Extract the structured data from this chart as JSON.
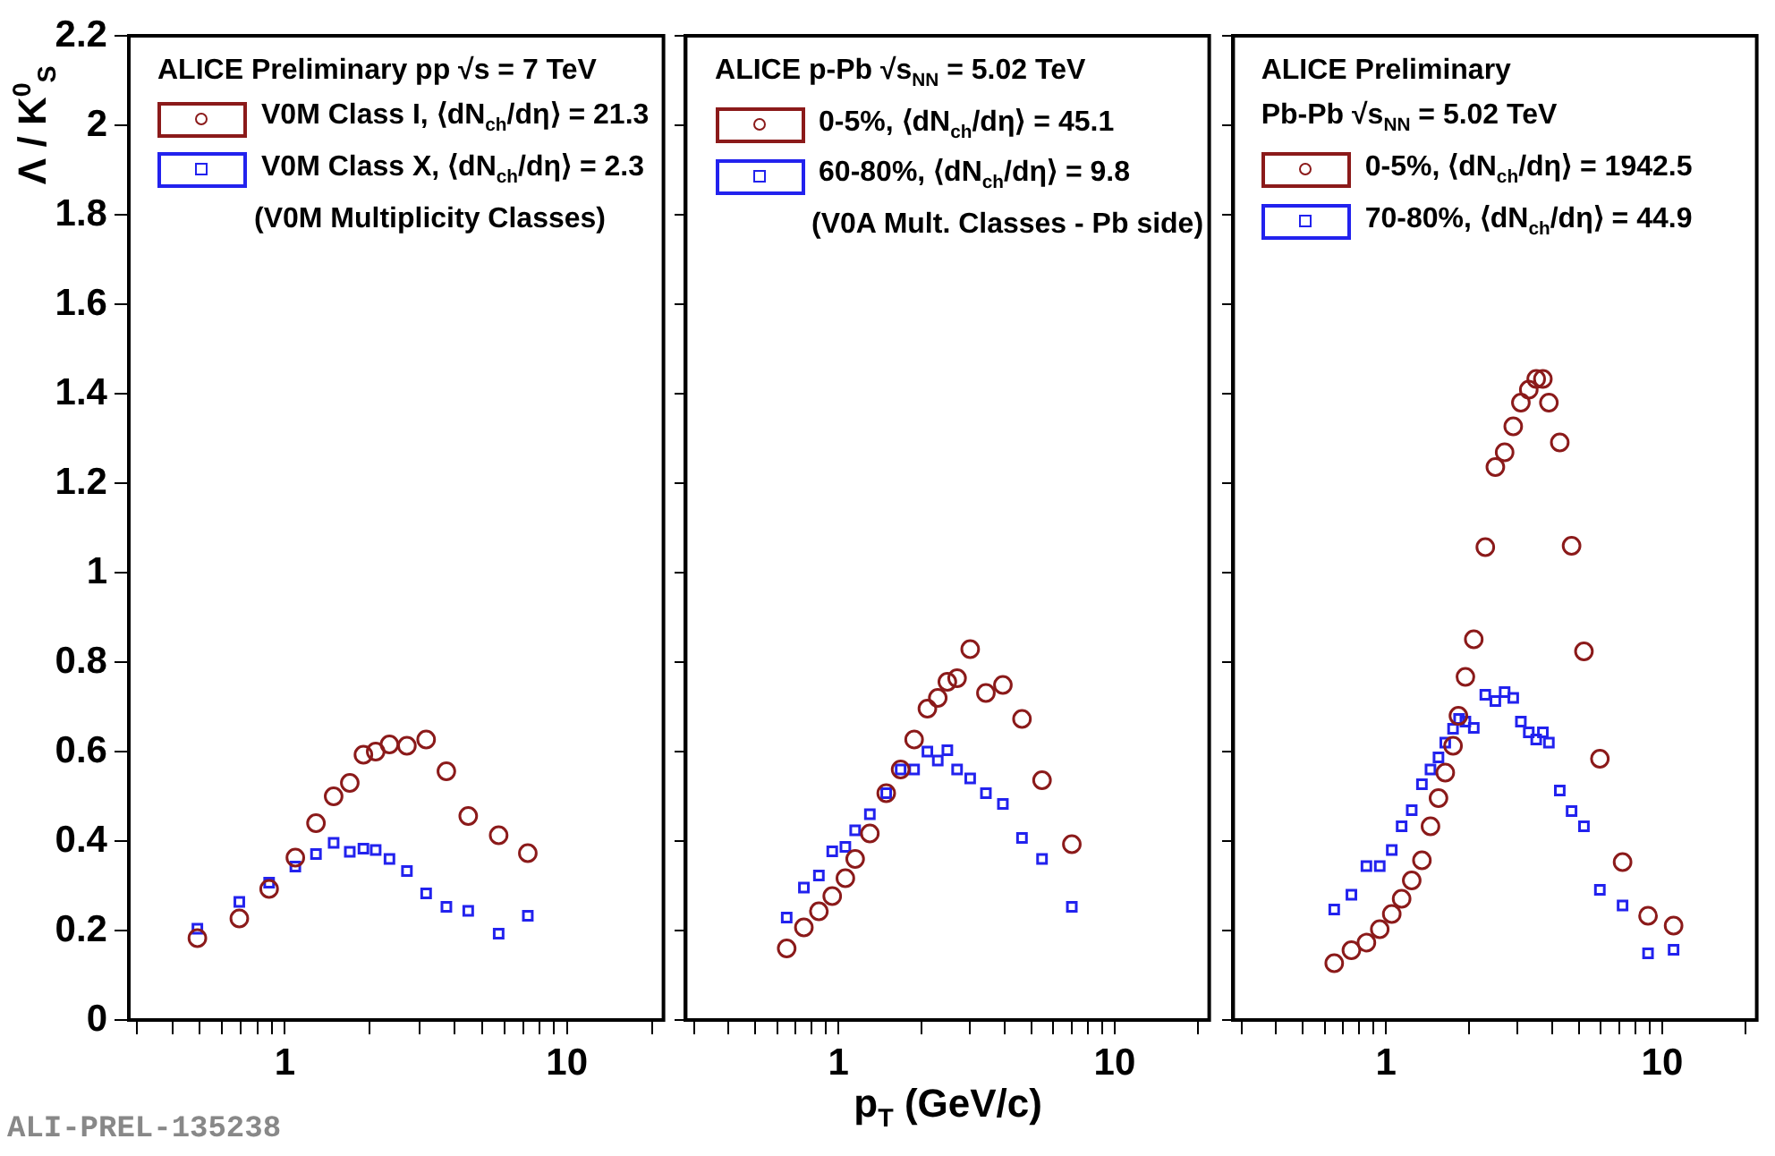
{
  "chart_data": [
    {
      "type": "scatter",
      "title": "ALICE Preliminary pp √s = 7 TeV",
      "ylabel": "Λ / K$^{0}$$_{S}$",
      "log": "x",
      "grid": false,
      "legend": "top left",
      "xlim": [
        0.28,
        22
      ],
      "xticks": [
        {
          "value": 0.3,
          "label": null
        },
        {
          "value": 0.4,
          "label": null
        },
        {
          "value": 0.5,
          "label": null
        },
        {
          "value": 0.6,
          "label": null
        },
        {
          "value": 0.7,
          "label": null
        },
        {
          "value": 0.8,
          "label": null
        },
        {
          "value": 0.9,
          "label": null
        },
        {
          "value": 1,
          "label": "1"
        },
        {
          "value": 2,
          "label": null
        },
        {
          "value": 3,
          "label": null
        },
        {
          "value": 4,
          "label": null
        },
        {
          "value": 5,
          "label": null
        },
        {
          "value": 6,
          "label": null
        },
        {
          "value": 7,
          "label": null
        },
        {
          "value": 8,
          "label": null
        },
        {
          "value": 9,
          "label": null
        },
        {
          "value": 10,
          "label": "10"
        },
        {
          "value": 20,
          "label": null
        }
      ],
      "ylim": [
        0,
        2.2
      ],
      "yticks": [
        0,
        0.2,
        0.4,
        0.6,
        0.8,
        1,
        1.2,
        1.4,
        1.6,
        1.8,
        2,
        2.2
      ],
      "annotations": [
        "(V0M Multiplicity Classes)",
        "ALI-PREL-135238"
      ],
      "series": [
        {
          "name": "V0M Class I, ⟨dN$_{ch}$/dη⟩ = 21.3",
          "color": "#8b1a1a",
          "marker": "circle",
          "x": [
            0.49,
            0.69,
            0.88,
            1.09,
            1.29,
            1.49,
            1.7,
            1.9,
            2.1,
            2.35,
            2.71,
            3.17,
            3.74,
            4.47,
            5.73,
            7.27
          ],
          "values": [
            0.183,
            0.227,
            0.293,
            0.363,
            0.44,
            0.5,
            0.53,
            0.593,
            0.6,
            0.616,
            0.613,
            0.627,
            0.556,
            0.456,
            0.413,
            0.373
          ]
        },
        {
          "name": "V0M Class X, ⟨dN$_{ch}$/dη⟩ = 2.3",
          "color": "#2222ee",
          "marker": "square",
          "x": [
            0.49,
            0.69,
            0.88,
            1.09,
            1.29,
            1.49,
            1.7,
            1.9,
            2.1,
            2.35,
            2.71,
            3.17,
            3.74,
            4.47,
            5.73,
            7.27
          ],
          "values": [
            0.204,
            0.264,
            0.307,
            0.343,
            0.371,
            0.396,
            0.376,
            0.383,
            0.38,
            0.36,
            0.333,
            0.283,
            0.253,
            0.244,
            0.193,
            0.233
          ]
        }
      ]
    },
    {
      "type": "scatter",
      "title": "ALICE p-Pb √s$_{NN}$ = 5.02 TeV",
      "xlabel": "p$_{T}$ (GeV/c)",
      "log": "x",
      "grid": false,
      "legend": "top left",
      "tick_labels": "x",
      "xlim": [
        0.28,
        22
      ],
      "xticks": [
        {
          "value": 0.3,
          "label": null
        },
        {
          "value": 0.4,
          "label": null
        },
        {
          "value": 0.5,
          "label": null
        },
        {
          "value": 0.6,
          "label": null
        },
        {
          "value": 0.7,
          "label": null
        },
        {
          "value": 0.8,
          "label": null
        },
        {
          "value": 0.9,
          "label": null
        },
        {
          "value": 1,
          "label": "1"
        },
        {
          "value": 2,
          "label": null
        },
        {
          "value": 3,
          "label": null
        },
        {
          "value": 4,
          "label": null
        },
        {
          "value": 5,
          "label": null
        },
        {
          "value": 6,
          "label": null
        },
        {
          "value": 7,
          "label": null
        },
        {
          "value": 8,
          "label": null
        },
        {
          "value": 9,
          "label": null
        },
        {
          "value": 10,
          "label": "10"
        },
        {
          "value": 20,
          "label": null
        }
      ],
      "ylim": [
        0,
        2.2
      ],
      "yticks": [
        0,
        0.2,
        0.4,
        0.6,
        0.8,
        1,
        1.2,
        1.4,
        1.6,
        1.8,
        2,
        2.2
      ],
      "annotations": [
        "(V0A Mult. Classes - Pb side)"
      ],
      "series": [
        {
          "name": "0-5%, ⟨dN$_{ch}$/dη⟩ = 45.1",
          "color": "#8b1a1a",
          "marker": "circle",
          "x": [
            0.65,
            0.75,
            0.85,
            0.95,
            1.06,
            1.15,
            1.3,
            1.49,
            1.68,
            1.88,
            2.1,
            2.29,
            2.48,
            2.69,
            3.0,
            3.42,
            3.94,
            4.62,
            5.46,
            7.0
          ],
          "values": [
            0.16,
            0.207,
            0.243,
            0.277,
            0.317,
            0.36,
            0.417,
            0.507,
            0.56,
            0.627,
            0.696,
            0.72,
            0.756,
            0.764,
            0.829,
            0.731,
            0.749,
            0.673,
            0.536,
            0.393
          ]
        },
        {
          "name": "60-80%, ⟨dN$_{ch}$/dη⟩ = 9.8",
          "color": "#2222ee",
          "marker": "square",
          "x": [
            0.65,
            0.75,
            0.85,
            0.95,
            1.06,
            1.15,
            1.3,
            1.49,
            1.68,
            1.88,
            2.1,
            2.29,
            2.48,
            2.69,
            3.0,
            3.42,
            3.94,
            4.62,
            5.46,
            7.0
          ],
          "values": [
            0.229,
            0.296,
            0.323,
            0.377,
            0.387,
            0.424,
            0.46,
            0.507,
            0.56,
            0.56,
            0.6,
            0.58,
            0.603,
            0.56,
            0.54,
            0.507,
            0.483,
            0.407,
            0.36,
            0.253
          ]
        }
      ]
    },
    {
      "type": "scatter",
      "title": "ALICE Preliminary",
      "subtitle": "Pb-Pb √s$_{NN}$ = 5.02 TeV",
      "log": "x",
      "grid": false,
      "legend": "top left",
      "tick_labels": "x",
      "xlim": [
        0.28,
        22
      ],
      "xticks": [
        {
          "value": 0.3,
          "label": null
        },
        {
          "value": 0.4,
          "label": null
        },
        {
          "value": 0.5,
          "label": null
        },
        {
          "value": 0.6,
          "label": null
        },
        {
          "value": 0.7,
          "label": null
        },
        {
          "value": 0.8,
          "label": null
        },
        {
          "value": 0.9,
          "label": null
        },
        {
          "value": 1,
          "label": "1"
        },
        {
          "value": 2,
          "label": null
        },
        {
          "value": 3,
          "label": null
        },
        {
          "value": 4,
          "label": null
        },
        {
          "value": 5,
          "label": null
        },
        {
          "value": 6,
          "label": null
        },
        {
          "value": 7,
          "label": null
        },
        {
          "value": 8,
          "label": null
        },
        {
          "value": 9,
          "label": null
        },
        {
          "value": 10,
          "label": "10"
        },
        {
          "value": 20,
          "label": null
        }
      ],
      "ylim": [
        0,
        2.2
      ],
      "yticks": [
        0,
        0.2,
        0.4,
        0.6,
        0.8,
        1,
        1.2,
        1.4,
        1.6,
        1.8,
        2,
        2.2
      ],
      "series": [
        {
          "name": "0-5%, ⟨dN$_{ch}$/dη⟩ = 1942.5",
          "color": "#8b1a1a",
          "marker": "circle",
          "x": [
            0.65,
            0.75,
            0.85,
            0.95,
            1.05,
            1.14,
            1.24,
            1.35,
            1.45,
            1.55,
            1.64,
            1.75,
            1.83,
            1.94,
            2.08,
            2.29,
            2.49,
            2.69,
            2.89,
            3.08,
            3.29,
            3.5,
            3.7,
            3.89,
            4.26,
            4.7,
            5.21,
            5.95,
            7.19,
            8.89,
            11.0
          ],
          "values": [
            0.127,
            0.156,
            0.173,
            0.203,
            0.237,
            0.271,
            0.312,
            0.357,
            0.433,
            0.496,
            0.553,
            0.613,
            0.68,
            0.767,
            0.851,
            1.057,
            1.236,
            1.269,
            1.327,
            1.38,
            1.409,
            1.433,
            1.433,
            1.38,
            1.291,
            1.06,
            0.824,
            0.584,
            0.353,
            0.233,
            0.211
          ]
        },
        {
          "name": "70-80%, ⟨dN$_{ch}$/dη⟩ = 44.9",
          "color": "#2222ee",
          "marker": "square",
          "x": [
            0.65,
            0.75,
            0.85,
            0.95,
            1.05,
            1.14,
            1.24,
            1.35,
            1.45,
            1.55,
            1.64,
            1.75,
            1.84,
            1.94,
            2.08,
            2.29,
            2.49,
            2.69,
            2.89,
            3.08,
            3.29,
            3.5,
            3.7,
            3.89,
            4.26,
            4.7,
            5.21,
            5.95,
            7.19,
            8.89,
            11.0
          ],
          "values": [
            0.247,
            0.28,
            0.344,
            0.344,
            0.38,
            0.433,
            0.469,
            0.527,
            0.56,
            0.587,
            0.62,
            0.651,
            0.673,
            0.667,
            0.653,
            0.727,
            0.713,
            0.733,
            0.72,
            0.667,
            0.643,
            0.627,
            0.643,
            0.62,
            0.513,
            0.467,
            0.433,
            0.291,
            0.256,
            0.149,
            0.157
          ]
        }
      ]
    }
  ]
}
